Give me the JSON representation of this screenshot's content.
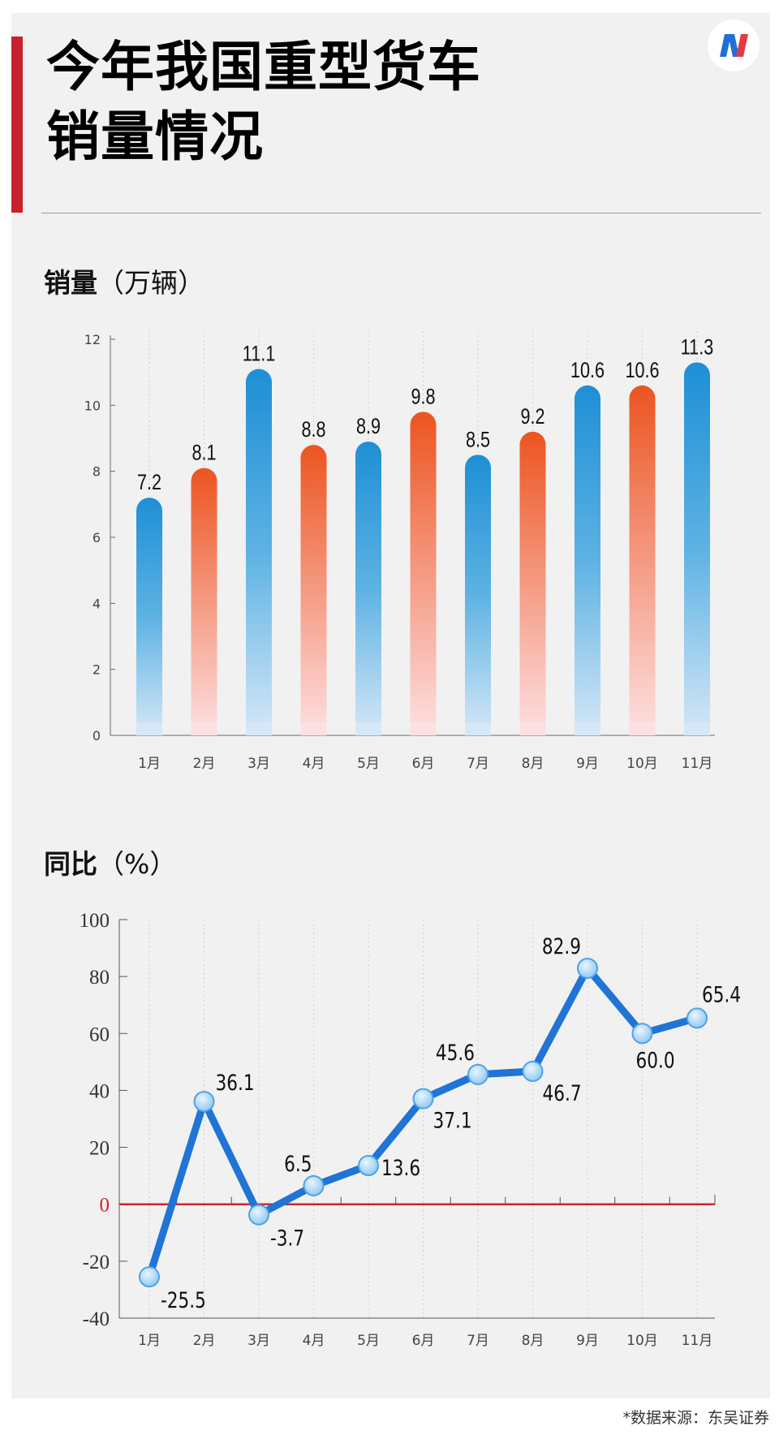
{
  "title_line1": "今年我国重型货车",
  "title_line2": "销量情况",
  "logo_icon": "brand-logo-n",
  "footer": "*数据来源：东吴证券",
  "colors": {
    "accent_red": "#c8202c",
    "bar_blue": "#1e8fd5",
    "bar_orange": "#ec5420",
    "line_blue": "#1f74d6",
    "zero_line": "#d0242f"
  },
  "chart_data": [
    {
      "type": "bar",
      "heading": "销量",
      "heading_unit": "（万辆）",
      "categories": [
        "1月",
        "2月",
        "3月",
        "4月",
        "5月",
        "6月",
        "7月",
        "8月",
        "9月",
        "10月",
        "11月"
      ],
      "values": [
        7.2,
        8.1,
        11.1,
        8.8,
        8.9,
        9.8,
        8.5,
        9.2,
        10.6,
        10.6,
        11.3
      ],
      "value_labels": [
        "7.2",
        "8.1",
        "11.1",
        "8.8",
        "8.9",
        "9.8",
        "8.5",
        "9.2",
        "10.6",
        "10.6",
        "11.3"
      ],
      "bar_colors": [
        "blue",
        "orange",
        "blue",
        "orange",
        "blue",
        "orange",
        "blue",
        "orange",
        "blue",
        "orange",
        "blue"
      ],
      "ylim": [
        0,
        12
      ],
      "yticks": [
        "0",
        "2",
        "4",
        "6",
        "8",
        "10",
        "12"
      ],
      "grid": "vertical dotted"
    },
    {
      "type": "line",
      "heading": "同比",
      "heading_unit": "（%）",
      "categories": [
        "1月",
        "2月",
        "3月",
        "4月",
        "5月",
        "6月",
        "7月",
        "8月",
        "9月",
        "10月",
        "11月"
      ],
      "values": [
        -25.5,
        36.1,
        -3.7,
        6.5,
        13.6,
        37.1,
        45.6,
        46.7,
        82.9,
        60.0,
        65.4
      ],
      "value_labels": [
        "-25.5",
        "36.1",
        "-3.7",
        "6.5",
        "13.6",
        "37.1",
        "45.6",
        "46.7",
        "82.9",
        "60.0",
        "65.4"
      ],
      "ylim": [
        -40,
        100
      ],
      "yticks": [
        "-40",
        "-20",
        "0",
        "20",
        "40",
        "60",
        "80",
        "100"
      ],
      "grid": "vertical dotted"
    }
  ]
}
